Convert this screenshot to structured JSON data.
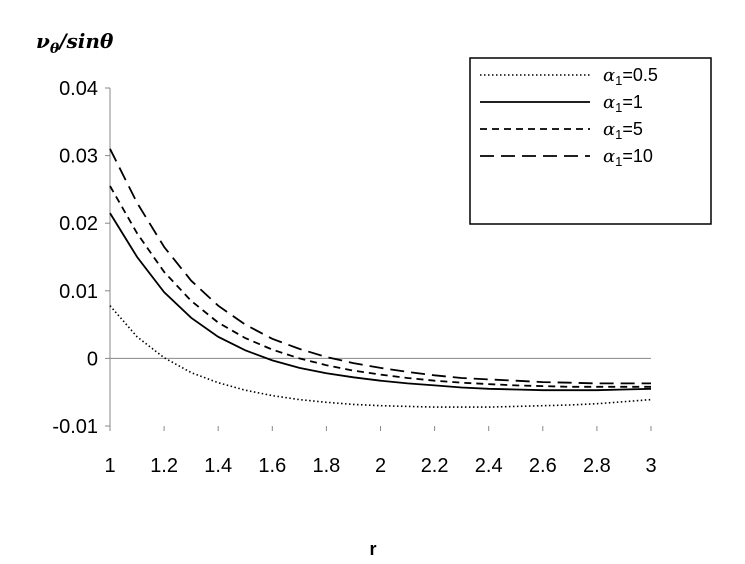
{
  "chart_data": {
    "type": "line",
    "ylabel": "νθ/sinθ",
    "xlabel": "r",
    "xlim": [
      1,
      3
    ],
    "ylim": [
      -0.01,
      0.04
    ],
    "x_ticks": [
      "1",
      "1.2",
      "1.4",
      "1.6",
      "1.8",
      "2",
      "2.2",
      "2.4",
      "2.6",
      "2.8",
      "3"
    ],
    "y_ticks": [
      "0.04",
      "0.03",
      "0.02",
      "0.01",
      "0",
      "-0.01"
    ],
    "grid": false,
    "legend_position": "top-right",
    "legend": {
      "items": [
        {
          "symbol": "α",
          "sub": "1",
          "text": "=0.5"
        },
        {
          "symbol": "α",
          "sub": "1",
          "text": "=1"
        },
        {
          "symbol": "α",
          "sub": "1",
          "text": "=5"
        },
        {
          "symbol": "α",
          "sub": "1",
          "text": "=10"
        }
      ]
    },
    "x": [
      1.0,
      1.1,
      1.2,
      1.3,
      1.4,
      1.5,
      1.6,
      1.7,
      1.8,
      1.9,
      2.0,
      2.1,
      2.2,
      2.3,
      2.4,
      2.5,
      2.6,
      2.7,
      2.8,
      2.9,
      3.0
    ],
    "series": [
      {
        "style": "dotted",
        "values": [
          0.0078,
          0.0032,
          0.0001,
          -0.0021,
          -0.0036,
          -0.0047,
          -0.0055,
          -0.0061,
          -0.0065,
          -0.0068,
          -0.007,
          -0.0071,
          -0.0072,
          -0.0072,
          -0.0072,
          -0.0071,
          -0.007,
          -0.0069,
          -0.0067,
          -0.0064,
          -0.0061
        ]
      },
      {
        "style": "solid",
        "values": [
          0.0215,
          0.015,
          0.0098,
          0.006,
          0.0032,
          0.0012,
          -0.0003,
          -0.0014,
          -0.0022,
          -0.0028,
          -0.0033,
          -0.0037,
          -0.004,
          -0.0043,
          -0.0045,
          -0.0046,
          -0.0047,
          -0.0047,
          -0.0047,
          -0.0046,
          -0.0045
        ]
      },
      {
        "style": "short-dash",
        "values": [
          0.0255,
          0.0185,
          0.0128,
          0.0085,
          0.0053,
          0.003,
          0.0013,
          0.0,
          -0.001,
          -0.0018,
          -0.0024,
          -0.0029,
          -0.0033,
          -0.0036,
          -0.0038,
          -0.004,
          -0.0041,
          -0.0042,
          -0.0042,
          -0.0042,
          -0.0042
        ]
      },
      {
        "style": "long-dash",
        "values": [
          0.031,
          0.023,
          0.0165,
          0.0115,
          0.0078,
          0.005,
          0.0029,
          0.0014,
          0.0002,
          -0.0007,
          -0.0014,
          -0.002,
          -0.0025,
          -0.0029,
          -0.0031,
          -0.0033,
          -0.0035,
          -0.0036,
          -0.0037,
          -0.0037,
          -0.0037
        ]
      }
    ]
  }
}
